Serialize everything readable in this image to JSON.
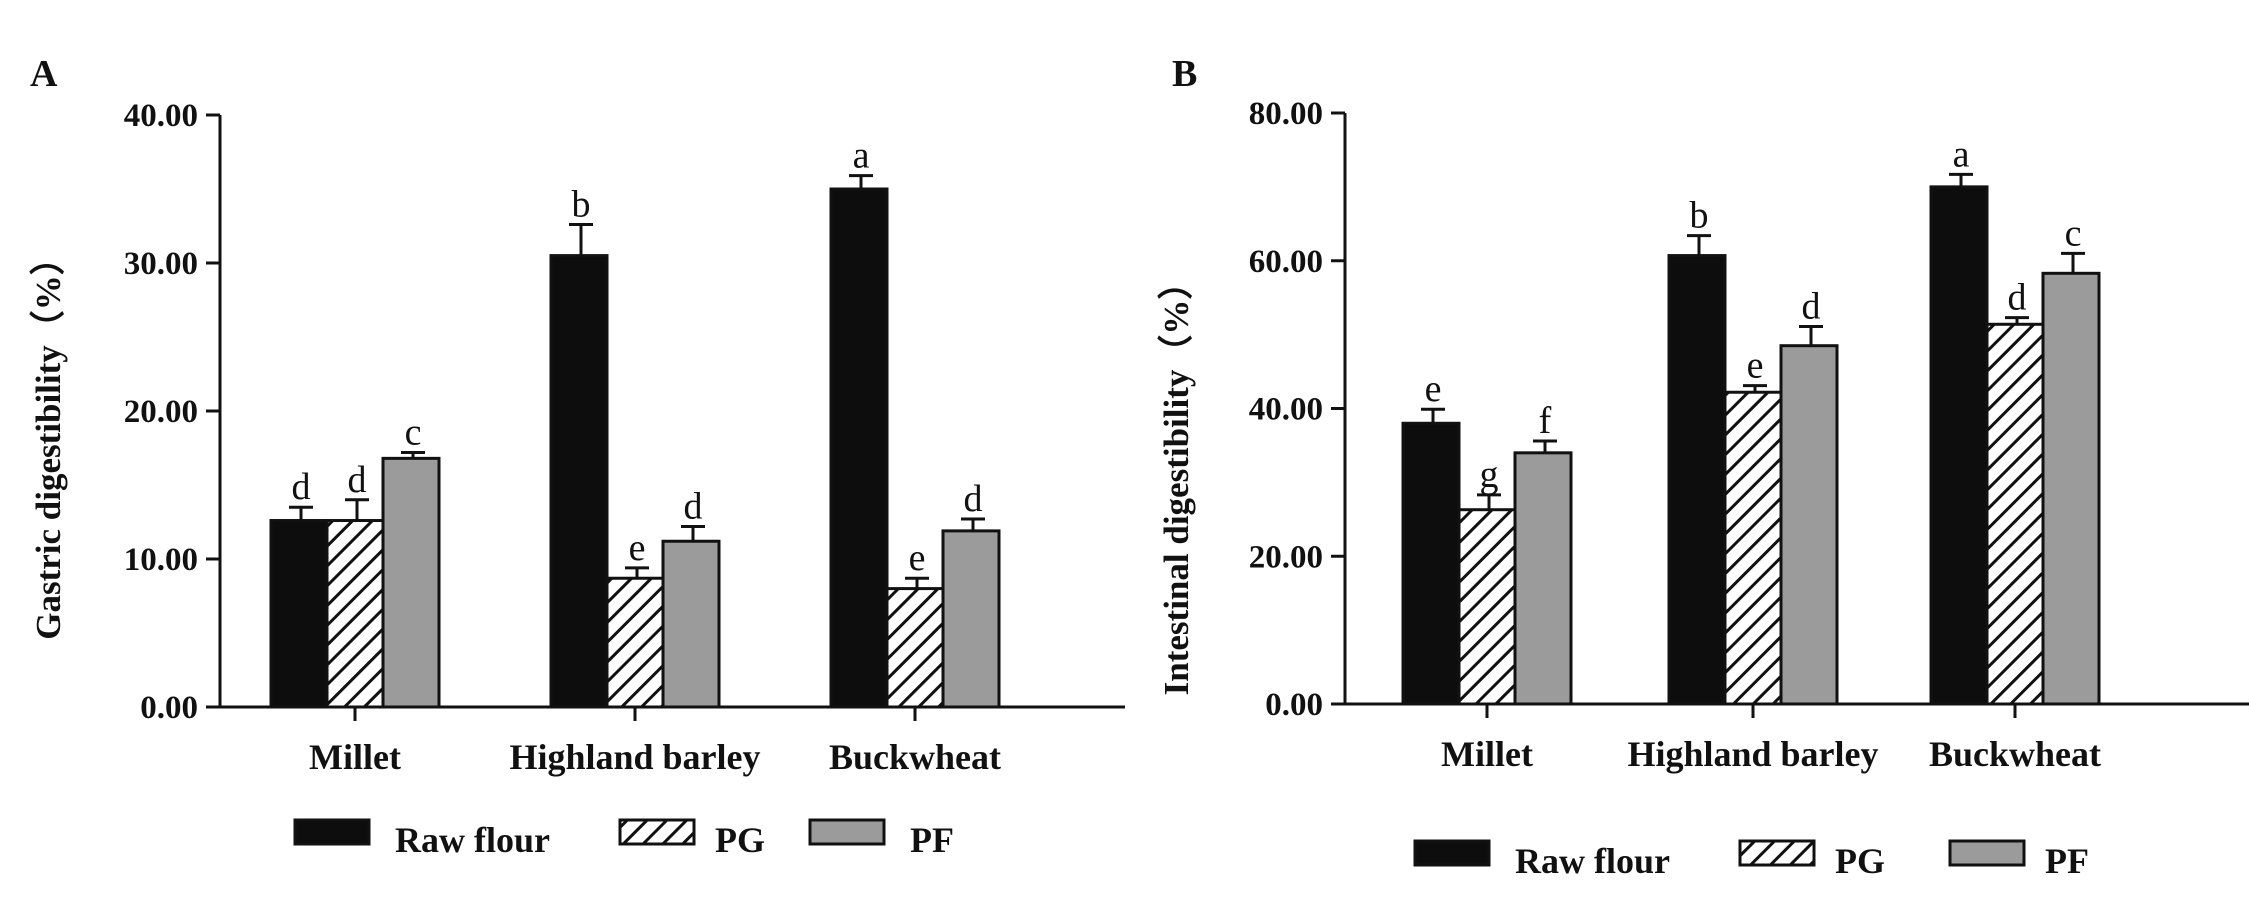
{
  "figure": {
    "colors": {
      "raw_flour": "#0d0d0d",
      "pg_stroke": "#111111",
      "pf": "#9b9b9b",
      "axis": "#111111"
    },
    "legend_entries": [
      "Raw flour",
      "PG",
      "PF"
    ]
  },
  "chart_data": [
    {
      "type": "bar",
      "panel": "A",
      "ylabel": "Gastric digestibility（%）",
      "ylim": [
        0,
        40
      ],
      "yticks": [
        "0.00",
        "10.00",
        "20.00",
        "30.00",
        "40.00"
      ],
      "categories": [
        "Millet",
        "Highland barley",
        "Buckwheat"
      ],
      "series": [
        {
          "name": "Raw flour",
          "values": [
            12.6,
            30.5,
            35.0
          ],
          "errors": [
            0.9,
            2.1,
            0.9
          ],
          "letters": [
            "d",
            "b",
            "a"
          ]
        },
        {
          "name": "PG",
          "values": [
            12.6,
            8.7,
            8.0
          ],
          "errors": [
            1.4,
            0.7,
            0.7
          ],
          "letters": [
            "d",
            "e",
            "e"
          ]
        },
        {
          "name": "PF",
          "values": [
            16.8,
            11.2,
            11.9
          ],
          "errors": [
            0.4,
            1.0,
            0.8
          ],
          "letters": [
            "c",
            "d",
            "d"
          ]
        }
      ]
    },
    {
      "type": "bar",
      "panel": "B",
      "ylabel": "Intestinal digestibility（%）",
      "ylim": [
        0,
        80
      ],
      "yticks": [
        "0.00",
        "20.00",
        "40.00",
        "60.00",
        "80.00"
      ],
      "categories": [
        "Millet",
        "Highland barley",
        "Buckwheat"
      ],
      "series": [
        {
          "name": "Raw flour",
          "values": [
            38.0,
            60.7,
            70.0
          ],
          "errors": [
            1.9,
            2.7,
            1.7
          ],
          "letters": [
            "e",
            "b",
            "a"
          ]
        },
        {
          "name": "PG",
          "values": [
            26.3,
            42.2,
            51.4
          ],
          "errors": [
            2.0,
            0.9,
            0.9
          ],
          "letters": [
            "g",
            "e",
            "d"
          ]
        },
        {
          "name": "PF",
          "values": [
            34.0,
            48.5,
            58.3
          ],
          "errors": [
            1.6,
            2.6,
            2.7
          ],
          "letters": [
            "f",
            "d",
            "c"
          ]
        }
      ]
    }
  ]
}
